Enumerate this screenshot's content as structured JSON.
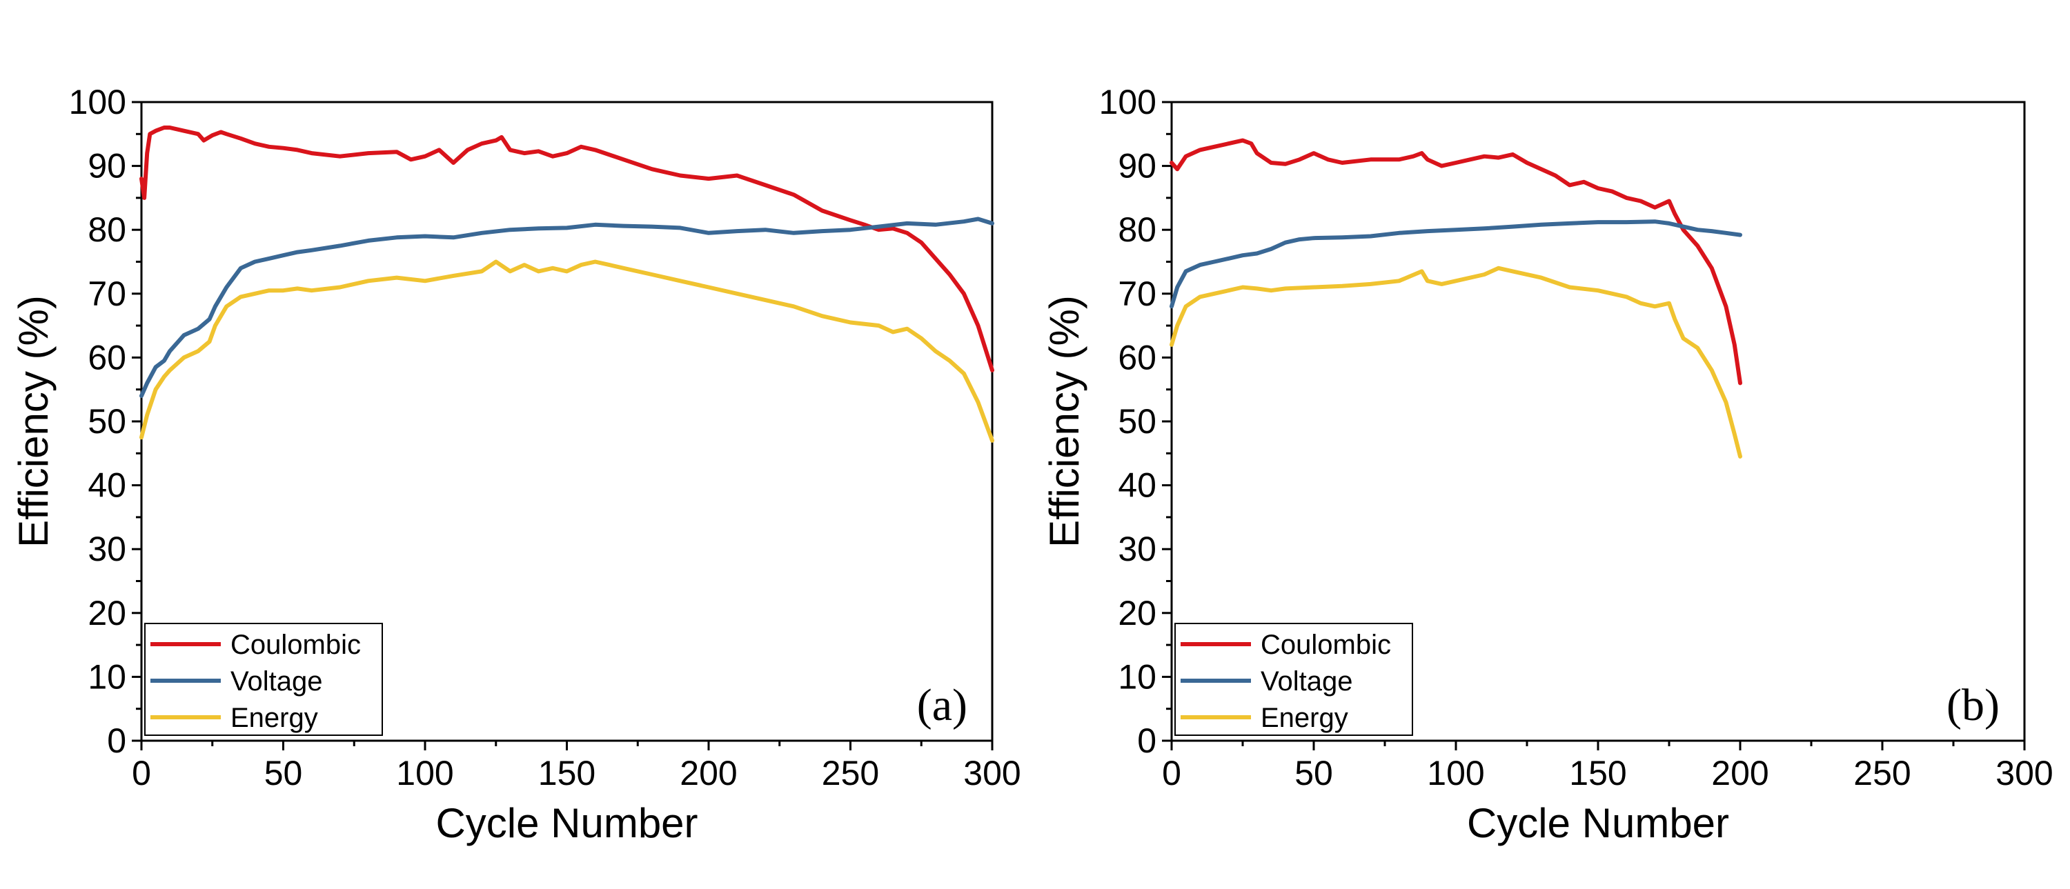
{
  "chart_data": [
    {
      "type": "line",
      "panel_label": "(a)",
      "xlabel": "Cycle Number",
      "ylabel": "Efficiency (%)",
      "xlim": [
        0,
        300
      ],
      "ylim": [
        0,
        100
      ],
      "xticks": [
        0,
        50,
        100,
        150,
        200,
        250,
        300
      ],
      "yticks": [
        0,
        10,
        20,
        30,
        40,
        50,
        60,
        70,
        80,
        90,
        100
      ],
      "legend_position": "bottom-left",
      "series": [
        {
          "name": "Coulombic",
          "color": "#d9141b",
          "x": [
            0,
            1,
            2,
            3,
            5,
            8,
            10,
            15,
            20,
            22,
            25,
            28,
            30,
            35,
            40,
            45,
            50,
            55,
            60,
            70,
            80,
            90,
            95,
            100,
            105,
            110,
            115,
            120,
            125,
            127,
            130,
            135,
            140,
            145,
            150,
            155,
            160,
            170,
            180,
            190,
            200,
            210,
            220,
            230,
            240,
            250,
            255,
            260,
            265,
            270,
            275,
            280,
            285,
            290,
            295,
            300
          ],
          "y": [
            88,
            85,
            92,
            95,
            95.5,
            96,
            96,
            95.5,
            95,
            94,
            94.8,
            95.3,
            95,
            94.3,
            93.5,
            93,
            92.8,
            92.5,
            92,
            91.5,
            92,
            92.2,
            91,
            91.5,
            92.5,
            90.5,
            92.5,
            93.5,
            94,
            94.5,
            92.5,
            92,
            92.3,
            91.5,
            92,
            93,
            92.5,
            91,
            89.5,
            88.5,
            88,
            88.5,
            87,
            85.5,
            83,
            81.5,
            80.8,
            80,
            80.2,
            79.5,
            78,
            75.5,
            73,
            70,
            65,
            58
          ]
        },
        {
          "name": "Voltage",
          "color": "#3a6895",
          "x": [
            0,
            2,
            5,
            8,
            10,
            12,
            15,
            20,
            24,
            26,
            30,
            35,
            40,
            45,
            50,
            55,
            60,
            70,
            80,
            90,
            100,
            110,
            120,
            130,
            140,
            150,
            160,
            170,
            180,
            190,
            200,
            210,
            220,
            230,
            240,
            250,
            260,
            270,
            280,
            290,
            295,
            300
          ],
          "y": [
            54,
            56,
            58.5,
            59.5,
            61,
            62,
            63.5,
            64.5,
            66,
            68,
            71,
            74,
            75,
            75.5,
            76,
            76.5,
            76.8,
            77.5,
            78.3,
            78.8,
            79,
            78.8,
            79.5,
            80,
            80.2,
            80.3,
            80.8,
            80.6,
            80.5,
            80.3,
            79.5,
            79.8,
            80,
            79.5,
            79.8,
            80,
            80.5,
            81,
            80.8,
            81.3,
            81.7,
            81
          ]
        },
        {
          "name": "Energy",
          "color": "#f0c330",
          "x": [
            0,
            2,
            5,
            8,
            10,
            15,
            20,
            24,
            26,
            30,
            35,
            40,
            45,
            50,
            55,
            60,
            70,
            80,
            90,
            100,
            110,
            120,
            125,
            130,
            135,
            140,
            145,
            150,
            155,
            160,
            165,
            170,
            180,
            190,
            200,
            210,
            220,
            230,
            240,
            250,
            260,
            265,
            270,
            275,
            280,
            285,
            290,
            295,
            300
          ],
          "y": [
            47.5,
            51,
            55,
            57,
            58,
            60,
            61,
            62.5,
            65,
            68,
            69.5,
            70,
            70.5,
            70.5,
            70.8,
            70.5,
            71,
            72,
            72.5,
            72,
            72.8,
            73.5,
            75,
            73.5,
            74.5,
            73.5,
            74,
            73.5,
            74.5,
            75,
            74.5,
            74,
            73,
            72,
            71,
            70,
            69,
            68,
            66.5,
            65.5,
            65,
            64,
            64.5,
            63,
            61,
            59.5,
            57.5,
            53,
            47
          ]
        }
      ]
    },
    {
      "type": "line",
      "panel_label": "(b)",
      "xlabel": "Cycle Number",
      "ylabel": "Efficiency (%)",
      "xlim": [
        0,
        300
      ],
      "ylim": [
        0,
        100
      ],
      "xticks": [
        0,
        50,
        100,
        150,
        200,
        250,
        300
      ],
      "yticks": [
        0,
        10,
        20,
        30,
        40,
        50,
        60,
        70,
        80,
        90,
        100
      ],
      "legend_position": "bottom-left",
      "series": [
        {
          "name": "Coulombic",
          "color": "#d9141b",
          "x": [
            0,
            2,
            5,
            10,
            15,
            20,
            25,
            28,
            30,
            35,
            40,
            45,
            50,
            55,
            60,
            70,
            80,
            85,
            88,
            90,
            95,
            100,
            105,
            110,
            115,
            120,
            125,
            130,
            135,
            140,
            145,
            150,
            155,
            160,
            165,
            170,
            175,
            177,
            180,
            185,
            190,
            195,
            198,
            200
          ],
          "y": [
            90.5,
            89.5,
            91.5,
            92.5,
            93,
            93.5,
            94,
            93.5,
            92,
            90.5,
            90.3,
            91,
            92,
            91,
            90.5,
            91,
            91,
            91.5,
            92,
            91,
            90,
            90.5,
            91,
            91.5,
            91.3,
            91.8,
            90.5,
            89.5,
            88.5,
            87,
            87.5,
            86.5,
            86,
            85,
            84.5,
            83.5,
            84.5,
            82.5,
            80,
            77.5,
            74,
            68,
            62,
            56
          ]
        },
        {
          "name": "Voltage",
          "color": "#3a6895",
          "x": [
            0,
            2,
            5,
            10,
            15,
            20,
            25,
            30,
            35,
            40,
            45,
            50,
            60,
            70,
            80,
            90,
            100,
            110,
            120,
            130,
            140,
            150,
            160,
            170,
            175,
            180,
            185,
            190,
            195,
            200
          ],
          "y": [
            68,
            71,
            73.5,
            74.5,
            75,
            75.5,
            76,
            76.3,
            77,
            78,
            78.5,
            78.7,
            78.8,
            79,
            79.5,
            79.8,
            80,
            80.2,
            80.5,
            80.8,
            81,
            81.2,
            81.2,
            81.3,
            81,
            80.5,
            80,
            79.8,
            79.5,
            79.2
          ]
        },
        {
          "name": "Energy",
          "color": "#f0c330",
          "x": [
            0,
            2,
            5,
            10,
            15,
            20,
            25,
            30,
            35,
            40,
            50,
            60,
            70,
            80,
            88,
            90,
            95,
            100,
            110,
            115,
            120,
            130,
            140,
            150,
            160,
            165,
            170,
            175,
            177,
            180,
            185,
            190,
            195,
            198,
            200
          ],
          "y": [
            62,
            65,
            68,
            69.5,
            70,
            70.5,
            71,
            70.8,
            70.5,
            70.8,
            71,
            71.2,
            71.5,
            72,
            73.5,
            72,
            71.5,
            72,
            73,
            74,
            73.5,
            72.5,
            71,
            70.5,
            69.5,
            68.5,
            68,
            68.5,
            66,
            63,
            61.5,
            58,
            53,
            48,
            44.5
          ]
        }
      ]
    }
  ]
}
